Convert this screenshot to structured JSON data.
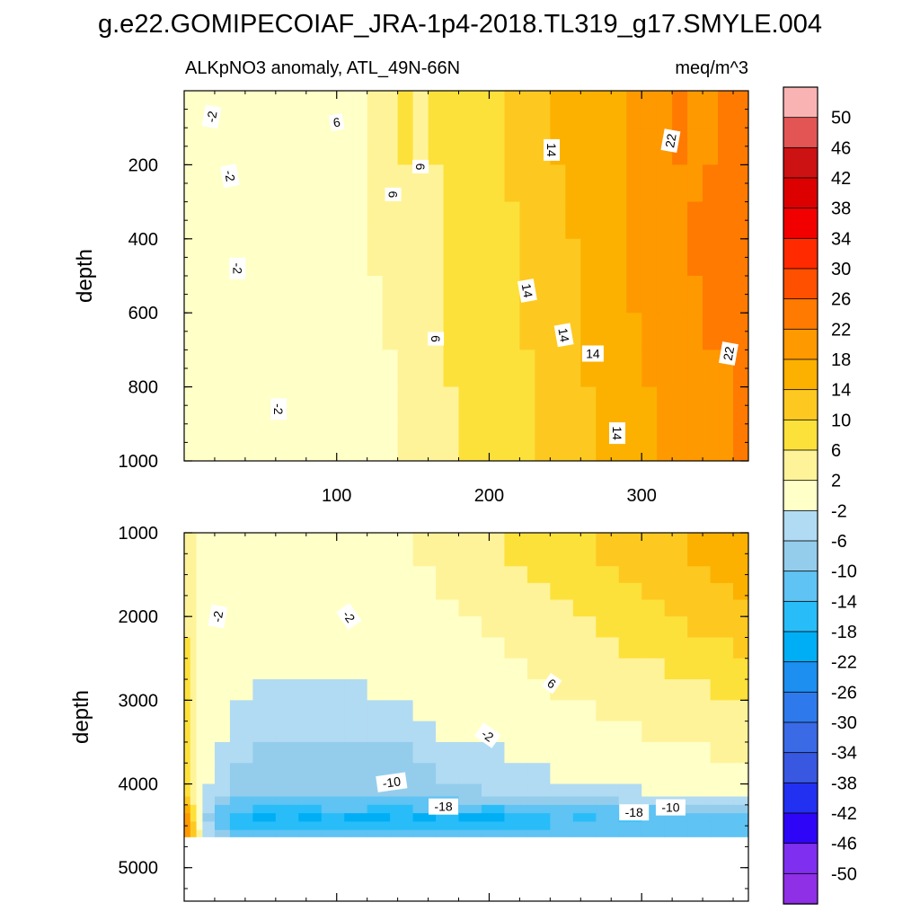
{
  "figure": {
    "title": "g.e22.GOMIPECOIAF_JRA-1p4-2018.TL319_g17.SMYLE.004",
    "subtitle_left": "ALKpNO3 anomaly, ATL_49N-66N",
    "subtitle_right": "meq/m^3"
  },
  "chart_data": [
    {
      "type": "heatmap",
      "panel": "upper",
      "ylabel": "depth",
      "xlabel": "",
      "xlim": [
        0,
        370
      ],
      "ylim": [
        1000,
        0
      ],
      "y_reversed": true,
      "xticks": [
        100,
        200,
        300
      ],
      "yticks": [
        200,
        400,
        600,
        800,
        1000
      ],
      "grid": false,
      "x_edges": [
        0,
        10,
        20,
        30,
        35,
        40,
        50,
        60,
        80,
        100,
        110,
        120,
        130,
        140,
        150,
        160,
        170,
        180,
        200,
        210,
        220,
        230,
        240,
        250,
        260,
        270,
        280,
        290,
        300,
        310,
        320,
        330,
        340,
        350,
        360,
        370
      ],
      "y_edges": [
        0,
        100,
        200,
        300,
        400,
        500,
        600,
        700,
        800,
        900,
        1000
      ],
      "values": [
        [
          0,
          -2,
          0,
          0,
          -2,
          0,
          0,
          0,
          0,
          0,
          0,
          2,
          4,
          6,
          4,
          6,
          6,
          8,
          8,
          10,
          10,
          12,
          14,
          14,
          14,
          16,
          16,
          18,
          18,
          20,
          22,
          20,
          20,
          22,
          22
        ],
        [
          -2,
          0,
          0,
          0,
          -2,
          0,
          0,
          0,
          0,
          0,
          0,
          2,
          4,
          6,
          4,
          6,
          6,
          8,
          8,
          10,
          10,
          12,
          14,
          14,
          14,
          16,
          16,
          18,
          18,
          20,
          22,
          20,
          20,
          22,
          22
        ],
        [
          -2,
          0,
          0,
          0,
          -2,
          0,
          0,
          0,
          0,
          0,
          0,
          2,
          4,
          4,
          4,
          4,
          6,
          8,
          8,
          10,
          10,
          12,
          12,
          14,
          14,
          16,
          16,
          18,
          20,
          20,
          20,
          20,
          22,
          22,
          24
        ],
        [
          0,
          0,
          0,
          0,
          -2,
          0,
          0,
          0,
          0,
          0,
          0,
          2,
          2,
          4,
          4,
          4,
          6,
          6,
          8,
          8,
          10,
          12,
          12,
          14,
          14,
          16,
          16,
          18,
          20,
          20,
          20,
          22,
          22,
          22,
          24
        ],
        [
          0,
          0,
          0,
          0,
          -2,
          0,
          0,
          0,
          0,
          0,
          0,
          2,
          2,
          4,
          4,
          4,
          6,
          6,
          8,
          8,
          10,
          12,
          12,
          12,
          14,
          14,
          16,
          18,
          20,
          20,
          20,
          22,
          22,
          22,
          24
        ],
        [
          0,
          0,
          0,
          0,
          -2,
          0,
          0,
          -2,
          0,
          0,
          0,
          0,
          2,
          2,
          2,
          4,
          6,
          6,
          6,
          8,
          10,
          10,
          12,
          12,
          14,
          14,
          16,
          18,
          18,
          18,
          20,
          20,
          22,
          22,
          22
        ],
        [
          0,
          0,
          0,
          0,
          -2,
          0,
          0,
          -2,
          0,
          0,
          0,
          0,
          2,
          2,
          2,
          4,
          6,
          6,
          6,
          8,
          10,
          10,
          12,
          12,
          14,
          14,
          16,
          16,
          18,
          18,
          20,
          20,
          22,
          22,
          22
        ],
        [
          0,
          0,
          0,
          0,
          -2,
          0,
          0,
          -2,
          0,
          0,
          0,
          0,
          0,
          2,
          2,
          2,
          6,
          6,
          6,
          8,
          8,
          10,
          12,
          12,
          14,
          14,
          16,
          16,
          18,
          18,
          18,
          20,
          20,
          20,
          22
        ],
        [
          0,
          0,
          0,
          0,
          -2,
          0,
          0,
          -2,
          0,
          0,
          0,
          0,
          0,
          2,
          2,
          2,
          4,
          6,
          6,
          8,
          8,
          10,
          12,
          12,
          12,
          14,
          14,
          16,
          16,
          18,
          18,
          20,
          20,
          20,
          22
        ],
        [
          0,
          0,
          0,
          0,
          -2,
          0,
          0,
          -2,
          0,
          0,
          0,
          0,
          0,
          2,
          2,
          2,
          4,
          6,
          6,
          8,
          8,
          10,
          12,
          12,
          12,
          14,
          14,
          16,
          16,
          18,
          18,
          18,
          20,
          20,
          22
        ]
      ],
      "contour_labels": [
        {
          "x": 18,
          "y": 70,
          "text": "-2",
          "angle": -80
        },
        {
          "x": 30,
          "y": 230,
          "text": "-2",
          "angle": 80
        },
        {
          "x": 35,
          "y": 480,
          "text": "-2",
          "angle": 90
        },
        {
          "x": 62,
          "y": 860,
          "text": "-2",
          "angle": 90
        },
        {
          "x": 100,
          "y": 85,
          "text": "6",
          "angle": -10
        },
        {
          "x": 155,
          "y": 205,
          "text": "6",
          "angle": 90
        },
        {
          "x": 137,
          "y": 280,
          "text": "6",
          "angle": 90
        },
        {
          "x": 165,
          "y": 670,
          "text": "6",
          "angle": 90
        },
        {
          "x": 241,
          "y": 160,
          "text": "14",
          "angle": 90
        },
        {
          "x": 225,
          "y": 540,
          "text": "14",
          "angle": 80
        },
        {
          "x": 249,
          "y": 660,
          "text": "14",
          "angle": 80
        },
        {
          "x": 268,
          "y": 710,
          "text": "14",
          "angle": 0
        },
        {
          "x": 284,
          "y": 925,
          "text": "14",
          "angle": 90
        },
        {
          "x": 319,
          "y": 135,
          "text": "22",
          "angle": -80
        },
        {
          "x": 357,
          "y": 710,
          "text": "22",
          "angle": -80
        }
      ]
    },
    {
      "type": "heatmap",
      "panel": "lower",
      "ylabel": "depth",
      "xlabel": "",
      "xlim": [
        0,
        370
      ],
      "ylim": [
        5400,
        1000
      ],
      "y_reversed": true,
      "xticks": [
        100,
        200,
        300
      ],
      "yticks": [
        1000,
        2000,
        3000,
        4000,
        5000
      ],
      "grid": false,
      "masked_below": 4630,
      "x_edges": [
        0,
        4,
        8,
        12,
        20,
        30,
        45,
        60,
        75,
        90,
        105,
        120,
        135,
        150,
        165,
        180,
        195,
        210,
        225,
        240,
        255,
        270,
        285,
        300,
        315,
        330,
        345,
        360,
        370
      ],
      "y_edges": [
        1000,
        1200,
        1400,
        1600,
        1800,
        2000,
        2250,
        2500,
        2750,
        3000,
        3250,
        3500,
        3750,
        4000,
        4150,
        4250,
        4350,
        4450,
        4550,
        4630
      ],
      "values": [
        [
          2,
          2,
          0,
          0,
          0,
          0,
          -2,
          -2,
          0,
          -2,
          0,
          0,
          0,
          2,
          2,
          2,
          4,
          6,
          6,
          8,
          8,
          10,
          10,
          12,
          12,
          14,
          14,
          16
        ],
        [
          2,
          2,
          0,
          0,
          0,
          0,
          -2,
          -2,
          -2,
          -2,
          0,
          0,
          0,
          2,
          2,
          4,
          4,
          6,
          6,
          8,
          8,
          10,
          10,
          12,
          12,
          14,
          14,
          14
        ],
        [
          4,
          2,
          0,
          -2,
          -2,
          -2,
          -2,
          -2,
          -2,
          -2,
          -2,
          0,
          0,
          0,
          2,
          2,
          4,
          4,
          6,
          6,
          8,
          8,
          10,
          10,
          12,
          12,
          14,
          14
        ],
        [
          4,
          2,
          0,
          -2,
          -2,
          -2,
          -2,
          -2,
          -2,
          -2,
          -2,
          0,
          0,
          0,
          2,
          2,
          2,
          4,
          4,
          6,
          6,
          8,
          8,
          10,
          10,
          12,
          12,
          14
        ],
        [
          4,
          2,
          0,
          -2,
          -2,
          -2,
          -2,
          -2,
          -2,
          -2,
          -2,
          -2,
          0,
          0,
          0,
          2,
          2,
          4,
          4,
          4,
          6,
          6,
          8,
          8,
          10,
          10,
          12,
          12
        ],
        [
          4,
          2,
          0,
          -2,
          -2,
          -2,
          -2,
          -2,
          -2,
          -2,
          -2,
          -2,
          0,
          0,
          0,
          0,
          2,
          2,
          4,
          4,
          4,
          6,
          6,
          8,
          8,
          10,
          10,
          12
        ],
        [
          6,
          2,
          0,
          -2,
          -2,
          -2,
          -2,
          -2,
          -2,
          -2,
          -2,
          -2,
          -2,
          0,
          0,
          0,
          0,
          2,
          2,
          4,
          4,
          4,
          6,
          6,
          6,
          8,
          8,
          10
        ],
        [
          6,
          2,
          0,
          -2,
          -2,
          -2,
          -2,
          -2,
          -2,
          -2,
          -2,
          -2,
          -2,
          -2,
          0,
          0,
          0,
          0,
          2,
          2,
          2,
          4,
          4,
          4,
          6,
          6,
          6,
          8
        ],
        [
          6,
          2,
          -2,
          -2,
          -2,
          -2,
          -6,
          -6,
          -6,
          -6,
          -6,
          -2,
          -2,
          -2,
          -2,
          0,
          0,
          0,
          0,
          2,
          2,
          2,
          2,
          4,
          4,
          4,
          6,
          6
        ],
        [
          6,
          2,
          -2,
          -2,
          -2,
          -6,
          -6,
          -6,
          -6,
          -6,
          -6,
          -6,
          -6,
          -2,
          -2,
          -2,
          -2,
          0,
          0,
          0,
          0,
          2,
          2,
          2,
          2,
          4,
          4,
          4
        ],
        [
          6,
          2,
          -2,
          -2,
          -2,
          -6,
          -6,
          -6,
          -6,
          -6,
          -6,
          -6,
          -6,
          -6,
          -2,
          -2,
          -2,
          -2,
          -2,
          0,
          0,
          0,
          0,
          2,
          2,
          2,
          2,
          2
        ],
        [
          6,
          2,
          -2,
          -2,
          -6,
          -6,
          -10,
          -10,
          -10,
          -10,
          -10,
          -10,
          -10,
          -6,
          -6,
          -6,
          -6,
          -2,
          -2,
          -2,
          -2,
          0,
          0,
          0,
          0,
          0,
          2,
          2
        ],
        [
          6,
          2,
          -2,
          -2,
          -6,
          -10,
          -10,
          -10,
          -10,
          -10,
          -10,
          -10,
          -10,
          -10,
          -6,
          -6,
          -6,
          -6,
          -6,
          -2,
          -2,
          -2,
          -2,
          -2,
          0,
          0,
          0,
          0
        ],
        [
          6,
          2,
          -2,
          -6,
          -6,
          -10,
          -10,
          -10,
          -10,
          -10,
          -10,
          -10,
          -10,
          -10,
          -10,
          -10,
          -6,
          -6,
          -6,
          -6,
          -6,
          -6,
          -6,
          -2,
          -2,
          -2,
          -2,
          -2
        ],
        [
          10,
          2,
          -2,
          -6,
          -10,
          -14,
          -14,
          -14,
          -14,
          -14,
          -14,
          -14,
          -14,
          -14,
          -14,
          -10,
          -10,
          -10,
          -10,
          -10,
          -10,
          -10,
          -6,
          -6,
          -6,
          -6,
          -6,
          -6
        ],
        [
          14,
          6,
          -2,
          -6,
          -14,
          -14,
          -18,
          -18,
          -18,
          -14,
          -14,
          -18,
          -18,
          -14,
          -14,
          -14,
          -18,
          -14,
          -14,
          -14,
          -14,
          -14,
          -14,
          -14,
          -10,
          -10,
          -10,
          -10
        ],
        [
          18,
          6,
          -2,
          -10,
          -14,
          -18,
          -22,
          -18,
          -22,
          -18,
          -22,
          -22,
          -18,
          -22,
          -18,
          -22,
          -22,
          -18,
          -18,
          -14,
          -18,
          -14,
          -18,
          -14,
          -14,
          -14,
          -14,
          -14
        ],
        [
          18,
          10,
          -2,
          -6,
          -14,
          -18,
          -18,
          -18,
          -18,
          -18,
          -18,
          -18,
          -18,
          -18,
          -18,
          -18,
          -18,
          -18,
          -18,
          -14,
          -14,
          -14,
          -14,
          -14,
          -14,
          -14,
          -14,
          -14
        ],
        [
          18,
          10,
          2,
          -6,
          -10,
          -14,
          -14,
          -14,
          -14,
          -14,
          -14,
          -14,
          -14,
          -14,
          -14,
          -14,
          -14,
          -14,
          -14,
          -14,
          -14,
          -14,
          -14,
          -14,
          -14,
          -14,
          -14,
          -14
        ]
      ],
      "contour_labels": [
        {
          "x": 22,
          "y": 2000,
          "text": "-2",
          "angle": -80
        },
        {
          "x": 108,
          "y": 2000,
          "text": "-2",
          "angle": 55
        },
        {
          "x": 241,
          "y": 2800,
          "text": "6",
          "angle": 35
        },
        {
          "x": 199,
          "y": 3420,
          "text": "-2",
          "angle": 35
        },
        {
          "x": 136,
          "y": 3980,
          "text": "-10",
          "angle": -8
        },
        {
          "x": 170,
          "y": 4270,
          "text": "-18",
          "angle": 0
        },
        {
          "x": 295,
          "y": 4340,
          "text": "-18",
          "angle": 0
        },
        {
          "x": 319,
          "y": 4280,
          "text": "-10",
          "angle": 0
        }
      ]
    }
  ],
  "colorbar": {
    "labels": [
      "50",
      "46",
      "42",
      "38",
      "34",
      "30",
      "26",
      "22",
      "18",
      "14",
      "10",
      "6",
      "2",
      "-2",
      "-6",
      "-10",
      "-14",
      "-18",
      "-22",
      "-26",
      "-30",
      "-34",
      "-38",
      "-42",
      "-46",
      "-50"
    ],
    "levels": [
      50,
      46,
      42,
      38,
      34,
      30,
      26,
      22,
      18,
      14,
      10,
      6,
      2,
      -2,
      -6,
      -10,
      -14,
      -18,
      -22,
      -26,
      -30,
      -34,
      -38,
      -42,
      -46,
      -50
    ],
    "colors": [
      "#fab3b3",
      "#e35555",
      "#cc1212",
      "#dd0000",
      "#f20000",
      "#ff2a00",
      "#ff5000",
      "#ff7a00",
      "#ff9900",
      "#fcb100",
      "#fdc921",
      "#fde13b",
      "#fff39a",
      "#ffffc8",
      "#b1dbf2",
      "#94cdec",
      "#5fc3f3",
      "#28bdf8",
      "#00aef5",
      "#1c8ff0",
      "#2e7aec",
      "#3b6ae6",
      "#3858e2",
      "#2230f2",
      "#2f05f7",
      "#7f2ff0",
      "#8f2fe6"
    ]
  }
}
